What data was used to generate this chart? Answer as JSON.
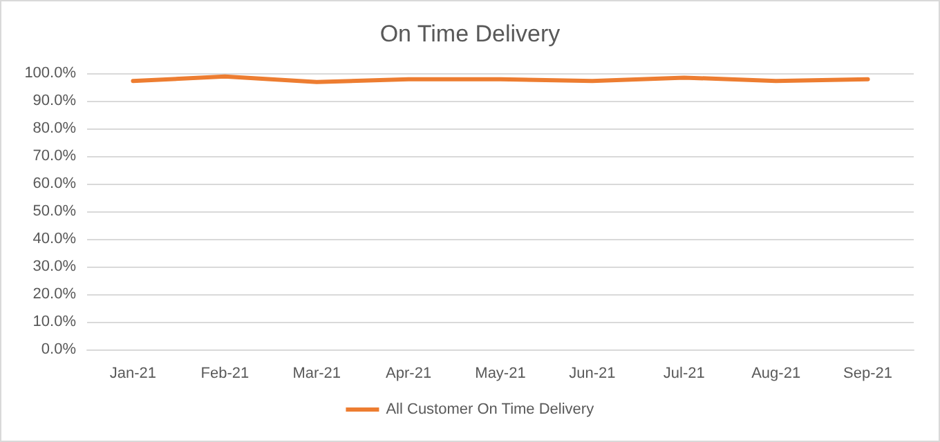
{
  "chart_data": {
    "type": "line",
    "title": "On Time Delivery",
    "categories": [
      "Jan-21",
      "Feb-21",
      "Mar-21",
      "Apr-21",
      "May-21",
      "Jun-21",
      "Jul-21",
      "Aug-21",
      "Sep-21"
    ],
    "series": [
      {
        "name": "All Customer On Time Delivery",
        "color": "#ed7d31",
        "values": [
          97.2,
          98.8,
          96.8,
          97.8,
          97.8,
          97.2,
          98.4,
          97.2,
          97.8
        ]
      }
    ],
    "ylim": [
      0,
      100
    ],
    "yticks": [
      {
        "value": 0,
        "label": "0.0%"
      },
      {
        "value": 10,
        "label": "10.0%"
      },
      {
        "value": 20,
        "label": "20.0%"
      },
      {
        "value": 30,
        "label": "30.0%"
      },
      {
        "value": 40,
        "label": "40.0%"
      },
      {
        "value": 50,
        "label": "50.0%"
      },
      {
        "value": 60,
        "label": "60.0%"
      },
      {
        "value": 70,
        "label": "70.0%"
      },
      {
        "value": 80,
        "label": "80.0%"
      },
      {
        "value": 90,
        "label": "90.0%"
      },
      {
        "value": 100,
        "label": "100.0%"
      }
    ],
    "grid": "y",
    "legend": "bottom",
    "marker": "none",
    "line_style": "solid"
  }
}
